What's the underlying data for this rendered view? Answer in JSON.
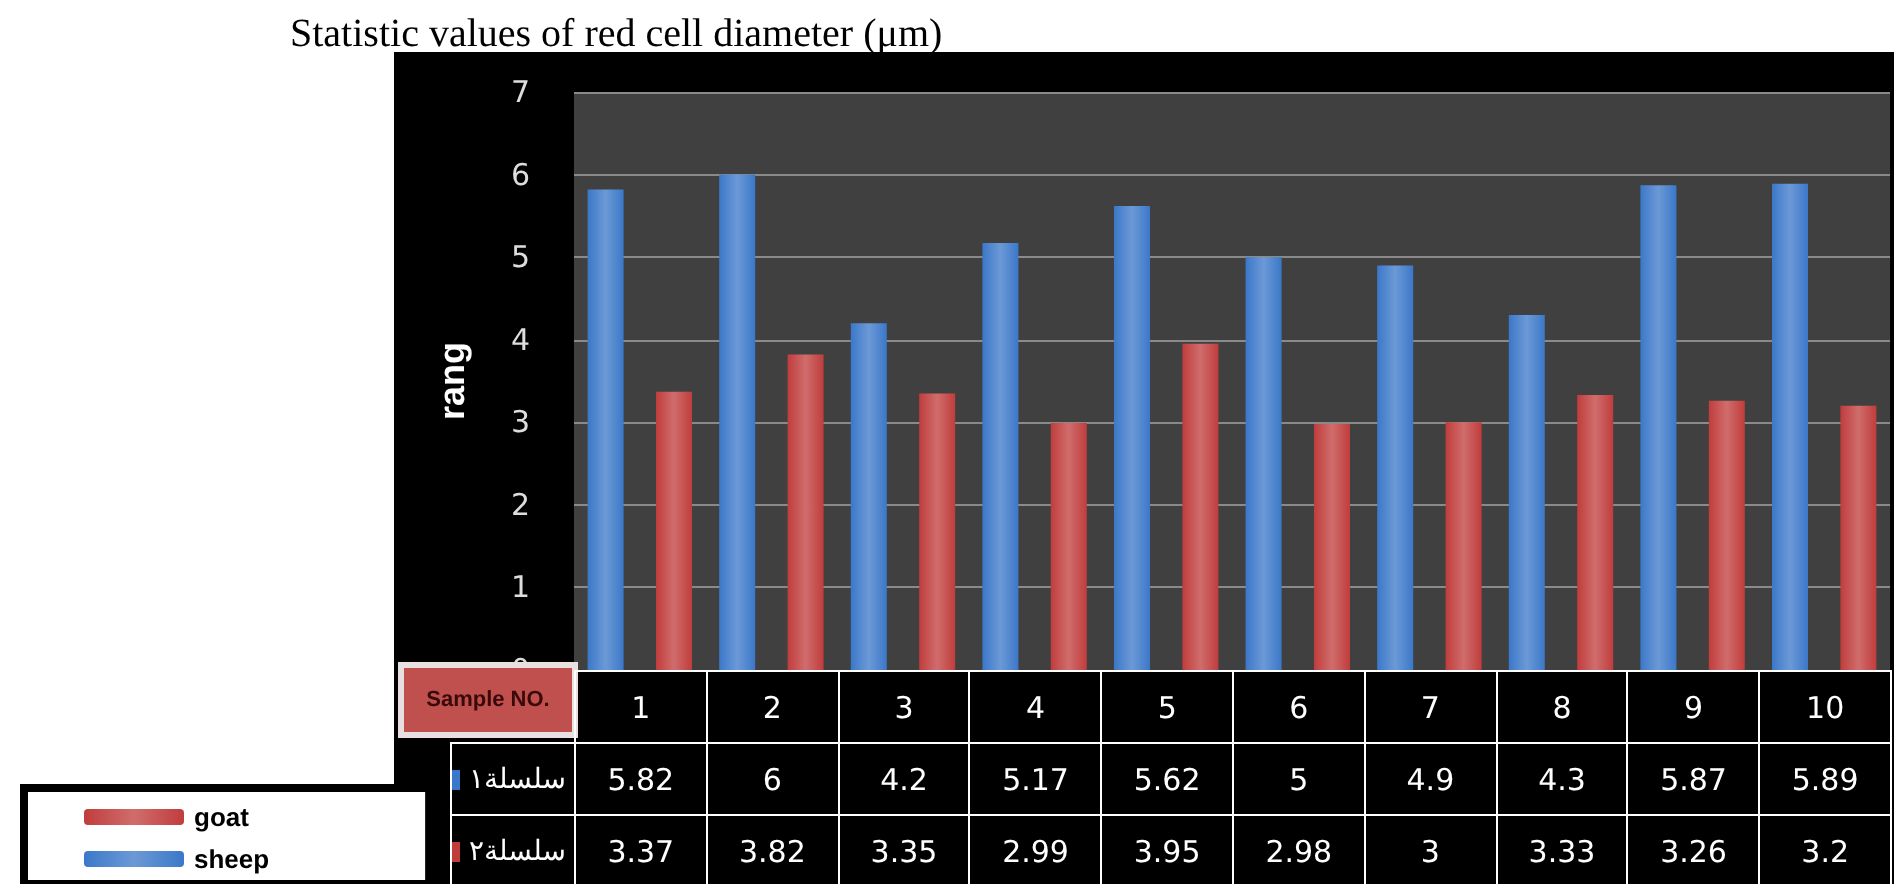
{
  "chart_data": {
    "type": "bar",
    "title": "Statistic values of red cell diameter (μm)",
    "ylabel": "rang",
    "xlabel": "Sample NO.",
    "categories": [
      "1",
      "2",
      "3",
      "4",
      "5",
      "6",
      "7",
      "8",
      "9",
      "10"
    ],
    "series": [
      {
        "name": "sheep",
        "color": "#3b78c9",
        "values": [
          5.82,
          6,
          4.2,
          5.17,
          5.62,
          5,
          4.9,
          4.3,
          5.87,
          5.89
        ]
      },
      {
        "name": "goat",
        "color": "#c03d3c",
        "values": [
          3.37,
          3.82,
          3.35,
          2.99,
          3.95,
          2.98,
          3,
          3.33,
          3.26,
          3.2
        ]
      }
    ],
    "annotations": [
      "سلسلة١",
      "سلسلة٢"
    ],
    "ylim": [
      0,
      7
    ],
    "yticks": [
      0,
      1,
      2,
      3,
      4,
      5,
      6,
      7
    ],
    "grid": "y",
    "legend": "bottom left",
    "data_labels": true
  }
}
